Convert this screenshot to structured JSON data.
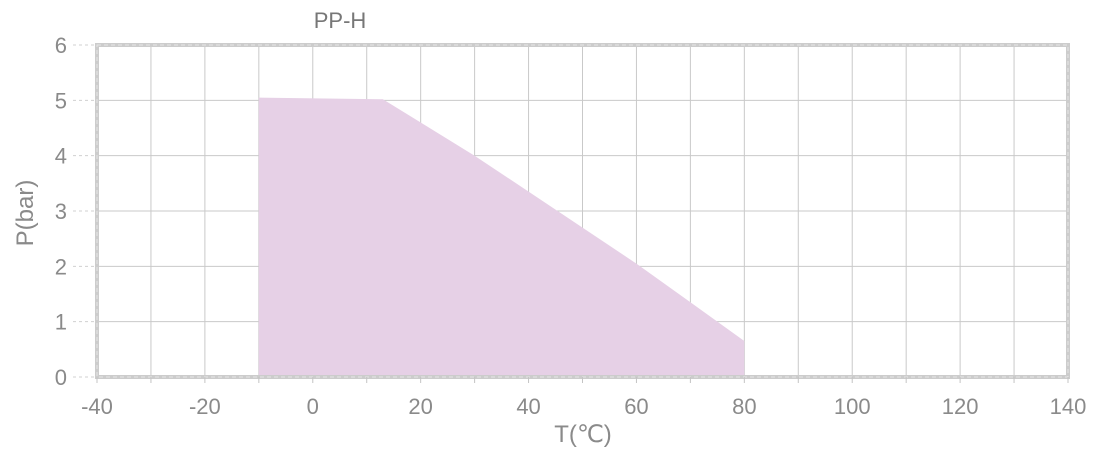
{
  "chart_data": {
    "type": "area",
    "title": "PP-H",
    "xlabel": "T(℃)",
    "ylabel": "P(bar)",
    "xlim": [
      -40,
      140
    ],
    "ylim": [
      0,
      6
    ],
    "x_ticks": [
      -40,
      -20,
      0,
      20,
      40,
      60,
      80,
      100,
      120,
      140
    ],
    "y_ticks": [
      0,
      1,
      2,
      3,
      4,
      5,
      6
    ],
    "x_grid_step": 10,
    "y_grid_step": 1,
    "grid": true,
    "legend": "none",
    "series": [
      {
        "color": "#e6d0e6",
        "x": [
          -10,
          -10,
          13,
          20,
          30,
          40,
          50,
          60,
          70,
          80,
          80
        ],
        "y": [
          0,
          5.05,
          5.02,
          4.6,
          4.0,
          3.35,
          2.7,
          2.05,
          1.35,
          0.65,
          0
        ]
      }
    ]
  }
}
